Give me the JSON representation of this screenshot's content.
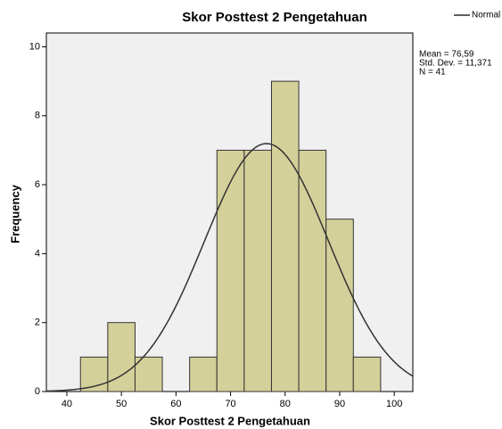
{
  "chart_data": {
    "type": "histogram",
    "title": "Skor Posttest 2 Pengetahuan",
    "x_label": "Skor Posttest 2 Pengetahuan",
    "y_label": "Frequency",
    "bins": [
      42.5,
      47.5,
      52.5,
      57.5,
      62.5,
      67.5,
      72.5,
      77.5,
      82.5,
      87.5,
      92.5,
      97.5
    ],
    "values": [
      1,
      2,
      1,
      0,
      1,
      7,
      7,
      9,
      7,
      5,
      1
    ],
    "color": "#d4d09a",
    "xlim": [
      36.25,
      103.4
    ],
    "xticks": [
      40,
      50,
      60,
      70,
      80,
      90,
      100
    ],
    "ylim": [
      0,
      10.4
    ],
    "yticks": [
      0,
      2,
      4,
      6,
      8,
      10
    ],
    "legend": "Normal",
    "curve_color": "#333333",
    "stats": [
      {
        "value": 76.59,
        "label": "Mean = 76,59"
      },
      {
        "value": 11.371,
        "label": "Std. Dev. = 11,371"
      },
      {
        "value": 41,
        "label": "N = 41"
      }
    ]
  }
}
